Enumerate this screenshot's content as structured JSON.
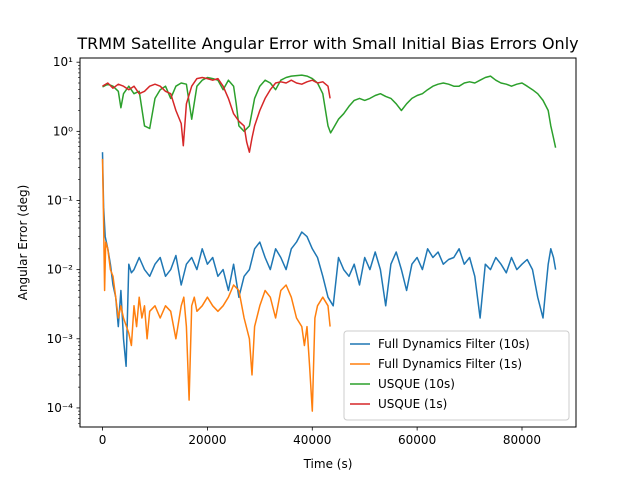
{
  "chart_data": {
    "type": "line",
    "title": "TRMM Satellite Angular Error with Small Initial Bias Errors Only",
    "xlabel": "Time (s)",
    "ylabel": "Angular Error (deg)",
    "xlim": [
      -4300,
      90300
    ],
    "ylim": [
      5.3e-05,
      11.5
    ],
    "yscale": "log",
    "x_ticks": [
      0,
      20000,
      40000,
      60000,
      80000
    ],
    "x_tick_labels": [
      "0",
      "20000",
      "40000",
      "60000",
      "80000"
    ],
    "y_ticks": [
      0.0001,
      0.001,
      0.01,
      0.1,
      1,
      10
    ],
    "y_tick_labels": [
      "10⁻⁴",
      "10⁻³",
      "10⁻²",
      "10⁻¹",
      "10⁰",
      "10¹"
    ],
    "grid": false,
    "legend_position": "lower-right",
    "series": [
      {
        "name": "Full Dynamics Filter (10s)",
        "color": "#1f77b4",
        "points": [
          [
            0,
            0.5
          ],
          [
            200,
            0.08
          ],
          [
            500,
            0.03
          ],
          [
            1000,
            0.02
          ],
          [
            1500,
            0.012
          ],
          [
            2000,
            0.006
          ],
          [
            2500,
            0.004
          ],
          [
            3000,
            0.0015
          ],
          [
            3500,
            0.005
          ],
          [
            4000,
            0.001
          ],
          [
            4500,
            0.0004
          ],
          [
            5000,
            0.012
          ],
          [
            5500,
            0.009
          ],
          [
            6000,
            0.01
          ],
          [
            7000,
            0.015
          ],
          [
            8000,
            0.01
          ],
          [
            9000,
            0.008
          ],
          [
            10000,
            0.012
          ],
          [
            11000,
            0.015
          ],
          [
            12000,
            0.008
          ],
          [
            13000,
            0.01
          ],
          [
            14000,
            0.016
          ],
          [
            15000,
            0.006
          ],
          [
            16000,
            0.012
          ],
          [
            17000,
            0.015
          ],
          [
            18000,
            0.01
          ],
          [
            19000,
            0.02
          ],
          [
            20000,
            0.012
          ],
          [
            21000,
            0.015
          ],
          [
            22000,
            0.008
          ],
          [
            23000,
            0.01
          ],
          [
            24000,
            0.005
          ],
          [
            25000,
            0.012
          ],
          [
            26000,
            0.004
          ],
          [
            27000,
            0.008
          ],
          [
            28000,
            0.01
          ],
          [
            29000,
            0.02
          ],
          [
            30000,
            0.025
          ],
          [
            31000,
            0.015
          ],
          [
            32000,
            0.01
          ],
          [
            33000,
            0.02
          ],
          [
            34000,
            0.015
          ],
          [
            35000,
            0.01
          ],
          [
            36000,
            0.02
          ],
          [
            37000,
            0.025
          ],
          [
            38000,
            0.035
          ],
          [
            39000,
            0.03
          ],
          [
            40000,
            0.02
          ],
          [
            41000,
            0.015
          ],
          [
            42000,
            0.008
          ],
          [
            43000,
            0.004
          ],
          [
            44000,
            0.003
          ],
          [
            45000,
            0.015
          ],
          [
            46000,
            0.01
          ],
          [
            47000,
            0.008
          ],
          [
            48000,
            0.012
          ],
          [
            49000,
            0.006
          ],
          [
            50000,
            0.015
          ],
          [
            51000,
            0.01
          ],
          [
            52000,
            0.018
          ],
          [
            53000,
            0.01
          ],
          [
            54000,
            0.003
          ],
          [
            55000,
            0.012
          ],
          [
            56000,
            0.018
          ],
          [
            57000,
            0.01
          ],
          [
            58000,
            0.005
          ],
          [
            59000,
            0.012
          ],
          [
            60000,
            0.015
          ],
          [
            61000,
            0.01
          ],
          [
            62000,
            0.02
          ],
          [
            63000,
            0.015
          ],
          [
            64000,
            0.018
          ],
          [
            65000,
            0.012
          ],
          [
            66000,
            0.014
          ],
          [
            67000,
            0.015
          ],
          [
            68000,
            0.02
          ],
          [
            69000,
            0.012
          ],
          [
            70000,
            0.015
          ],
          [
            71000,
            0.008
          ],
          [
            72000,
            0.002
          ],
          [
            73000,
            0.012
          ],
          [
            74000,
            0.01
          ],
          [
            75000,
            0.015
          ],
          [
            76000,
            0.012
          ],
          [
            77000,
            0.009
          ],
          [
            78000,
            0.015
          ],
          [
            79000,
            0.01
          ],
          [
            80000,
            0.012
          ],
          [
            81000,
            0.014
          ],
          [
            82000,
            0.01
          ],
          [
            83000,
            0.004
          ],
          [
            84000,
            0.002
          ],
          [
            84500,
            0.005
          ],
          [
            85000,
            0.012
          ],
          [
            85500,
            0.02
          ],
          [
            86000,
            0.015
          ],
          [
            86400,
            0.01
          ]
        ]
      },
      {
        "name": "Full Dynamics Filter (1s)",
        "color": "#ff7f0e",
        "points": [
          [
            0,
            0.4
          ],
          [
            200,
            0.05
          ],
          [
            400,
            0.005
          ],
          [
            600,
            0.025
          ],
          [
            1000,
            0.02
          ],
          [
            1500,
            0.01
          ],
          [
            2000,
            0.008
          ],
          [
            2500,
            0.004
          ],
          [
            3000,
            0.002
          ],
          [
            3500,
            0.003
          ],
          [
            4000,
            0.002
          ],
          [
            5000,
            0.0012
          ],
          [
            5500,
            0.0008
          ],
          [
            6000,
            0.003
          ],
          [
            6500,
            0.0015
          ],
          [
            7000,
            0.004
          ],
          [
            7500,
            0.002
          ],
          [
            8000,
            0.003
          ],
          [
            8500,
            0.001
          ],
          [
            9000,
            0.0025
          ],
          [
            10000,
            0.003
          ],
          [
            11000,
            0.002
          ],
          [
            12000,
            0.003
          ],
          [
            13000,
            0.0025
          ],
          [
            14000,
            0.001
          ],
          [
            15000,
            0.003
          ],
          [
            15500,
            0.004
          ],
          [
            16000,
            0.0015
          ],
          [
            16500,
            0.00013
          ],
          [
            17000,
            0.003
          ],
          [
            17500,
            0.004
          ],
          [
            18000,
            0.0025
          ],
          [
            19000,
            0.003
          ],
          [
            20000,
            0.004
          ],
          [
            21000,
            0.003
          ],
          [
            22000,
            0.0025
          ],
          [
            23000,
            0.003
          ],
          [
            24000,
            0.004
          ],
          [
            25000,
            0.006
          ],
          [
            26000,
            0.005
          ],
          [
            27000,
            0.002
          ],
          [
            28000,
            0.001
          ],
          [
            28500,
            0.0003
          ],
          [
            29000,
            0.0015
          ],
          [
            30000,
            0.003
          ],
          [
            31000,
            0.005
          ],
          [
            32000,
            0.004
          ],
          [
            33000,
            0.002
          ],
          [
            34000,
            0.005
          ],
          [
            35000,
            0.006
          ],
          [
            36000,
            0.004
          ],
          [
            37000,
            0.002
          ],
          [
            38000,
            0.0015
          ],
          [
            38500,
            0.0008
          ],
          [
            39000,
            0.0015
          ],
          [
            39500,
            0.0004
          ],
          [
            40000,
            9e-05
          ],
          [
            40500,
            0.002
          ],
          [
            41000,
            0.003
          ],
          [
            42000,
            0.004
          ],
          [
            43000,
            0.003
          ],
          [
            43400,
            0.0015
          ]
        ]
      },
      {
        "name": "USQUE (10s)",
        "color": "#2ca02c",
        "points": [
          [
            0,
            4.4
          ],
          [
            1000,
            4.8
          ],
          [
            2000,
            4.5
          ],
          [
            3000,
            3.8
          ],
          [
            3500,
            2.2
          ],
          [
            4000,
            3.5
          ],
          [
            5000,
            4.5
          ],
          [
            6000,
            3.5
          ],
          [
            7000,
            3.8
          ],
          [
            8000,
            1.2
          ],
          [
            9000,
            1.1
          ],
          [
            10000,
            3.0
          ],
          [
            11000,
            4.0
          ],
          [
            12000,
            4.5
          ],
          [
            13000,
            3.0
          ],
          [
            14000,
            4.5
          ],
          [
            15000,
            5.0
          ],
          [
            16000,
            4.8
          ],
          [
            17000,
            1.5
          ],
          [
            18000,
            4.5
          ],
          [
            19000,
            5.5
          ],
          [
            20000,
            6.0
          ],
          [
            21000,
            5.8
          ],
          [
            22000,
            5.5
          ],
          [
            23000,
            4.0
          ],
          [
            24000,
            5.5
          ],
          [
            25000,
            4.5
          ],
          [
            25500,
            2.5
          ],
          [
            26000,
            1.2
          ],
          [
            27000,
            1.0
          ],
          [
            28000,
            1.2
          ],
          [
            29000,
            3.0
          ],
          [
            30000,
            4.5
          ],
          [
            31000,
            5.5
          ],
          [
            32000,
            5.0
          ],
          [
            33000,
            4.0
          ],
          [
            34000,
            5.5
          ],
          [
            35000,
            6.0
          ],
          [
            36000,
            6.3
          ],
          [
            37000,
            6.4
          ],
          [
            38000,
            6.5
          ],
          [
            39000,
            6.3
          ],
          [
            40000,
            5.8
          ],
          [
            41000,
            5.0
          ],
          [
            42000,
            3.5
          ],
          [
            43000,
            1.2
          ],
          [
            43500,
            0.95
          ],
          [
            44000,
            1.1
          ],
          [
            45000,
            1.5
          ],
          [
            46000,
            1.8
          ],
          [
            47000,
            2.3
          ],
          [
            48000,
            2.8
          ],
          [
            49000,
            3.0
          ],
          [
            50000,
            2.8
          ],
          [
            51000,
            3.0
          ],
          [
            52000,
            3.3
          ],
          [
            53000,
            3.5
          ],
          [
            54000,
            3.2
          ],
          [
            55000,
            3.0
          ],
          [
            56000,
            2.5
          ],
          [
            57000,
            2.0
          ],
          [
            58000,
            2.5
          ],
          [
            59000,
            3.0
          ],
          [
            60000,
            3.3
          ],
          [
            61000,
            3.5
          ],
          [
            62000,
            4.0
          ],
          [
            63000,
            4.5
          ],
          [
            64000,
            4.8
          ],
          [
            65000,
            5.0
          ],
          [
            66000,
            4.8
          ],
          [
            67000,
            4.5
          ],
          [
            68000,
            4.5
          ],
          [
            69000,
            5.0
          ],
          [
            70000,
            5.2
          ],
          [
            71000,
            5.0
          ],
          [
            72000,
            5.5
          ],
          [
            73000,
            6.0
          ],
          [
            74000,
            6.3
          ],
          [
            75000,
            5.5
          ],
          [
            76000,
            5.0
          ],
          [
            77000,
            4.8
          ],
          [
            78000,
            4.5
          ],
          [
            79000,
            4.8
          ],
          [
            80000,
            5.0
          ],
          [
            81000,
            4.5
          ],
          [
            82000,
            4.0
          ],
          [
            83000,
            3.5
          ],
          [
            84000,
            2.8
          ],
          [
            85000,
            2.0
          ],
          [
            85500,
            1.2
          ],
          [
            86000,
            0.8
          ],
          [
            86400,
            0.58
          ]
        ]
      },
      {
        "name": "USQUE (1s)",
        "color": "#d62728",
        "points": [
          [
            0,
            4.5
          ],
          [
            1000,
            5.0
          ],
          [
            2000,
            4.2
          ],
          [
            3000,
            4.8
          ],
          [
            4000,
            4.5
          ],
          [
            5000,
            4.0
          ],
          [
            6000,
            4.5
          ],
          [
            7000,
            3.5
          ],
          [
            8000,
            3.8
          ],
          [
            9000,
            4.5
          ],
          [
            10000,
            4.8
          ],
          [
            11000,
            4.5
          ],
          [
            12000,
            3.8
          ],
          [
            13000,
            3.5
          ],
          [
            14000,
            2.0
          ],
          [
            15000,
            1.3
          ],
          [
            15400,
            0.62
          ],
          [
            16000,
            2.5
          ],
          [
            17000,
            4.5
          ],
          [
            18000,
            5.8
          ],
          [
            19000,
            6.0
          ],
          [
            20000,
            5.8
          ],
          [
            21000,
            5.5
          ],
          [
            22000,
            5.8
          ],
          [
            23000,
            4.5
          ],
          [
            24000,
            3.0
          ],
          [
            25000,
            1.8
          ],
          [
            26000,
            1.4
          ],
          [
            27000,
            1.2
          ],
          [
            27500,
            0.7
          ],
          [
            28000,
            0.5
          ],
          [
            28500,
            0.8
          ],
          [
            29000,
            1.2
          ],
          [
            30000,
            2.0
          ],
          [
            31000,
            3.0
          ],
          [
            32000,
            4.0
          ],
          [
            33000,
            5.0
          ],
          [
            34000,
            5.2
          ],
          [
            35000,
            5.0
          ],
          [
            36000,
            5.5
          ],
          [
            37000,
            5.0
          ],
          [
            38000,
            4.8
          ],
          [
            39000,
            5.2
          ],
          [
            40000,
            5.5
          ],
          [
            41000,
            5.0
          ],
          [
            42000,
            5.2
          ],
          [
            43000,
            4.5
          ],
          [
            43400,
            3.0
          ]
        ]
      }
    ]
  }
}
